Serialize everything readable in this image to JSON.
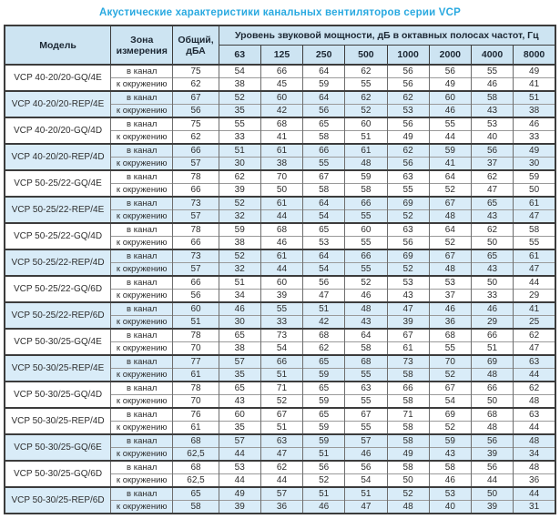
{
  "title": "Акустические характеристики канальных вентиляторов  серии VCP",
  "table": {
    "headers": {
      "model": "Модель",
      "zone": "Зона измерения",
      "total": "Общий, дБА",
      "level_group": "Уровень звуковой мощности, дБ в октавных полосах частот, Гц",
      "frequencies": [
        "63",
        "125",
        "250",
        "500",
        "1000",
        "2000",
        "4000",
        "8000"
      ]
    },
    "zone_labels": {
      "in_channel": "в канал",
      "to_environment": "к окружению"
    },
    "accent_colors": {
      "title_blue": "#29a9e0",
      "header_bg": "#cde4f2",
      "stripe_bg": "#d9ecf8"
    },
    "rows": [
      {
        "model": "VCP 40-20/20-GQ/4E",
        "striped": false,
        "in_channel": {
          "total": "75",
          "bands": [
            "54",
            "66",
            "64",
            "62",
            "56",
            "56",
            "55",
            "49"
          ]
        },
        "to_environment": {
          "total": "62",
          "bands": [
            "38",
            "45",
            "59",
            "55",
            "56",
            "49",
            "46",
            "41"
          ]
        }
      },
      {
        "model": "VCP 40-20/20-REP/4E",
        "striped": true,
        "in_channel": {
          "total": "67",
          "bands": [
            "52",
            "60",
            "64",
            "62",
            "62",
            "60",
            "58",
            "51"
          ]
        },
        "to_environment": {
          "total": "56",
          "bands": [
            "35",
            "42",
            "56",
            "52",
            "53",
            "46",
            "43",
            "38"
          ]
        }
      },
      {
        "model": "VCP 40-20/20-GQ/4D",
        "striped": false,
        "in_channel": {
          "total": "75",
          "bands": [
            "55",
            "68",
            "65",
            "60",
            "56",
            "55",
            "53",
            "46"
          ]
        },
        "to_environment": {
          "total": "62",
          "bands": [
            "33",
            "41",
            "58",
            "51",
            "49",
            "44",
            "40",
            "33"
          ]
        }
      },
      {
        "model": "VCP 40-20/20-REP/4D",
        "striped": true,
        "in_channel": {
          "total": "66",
          "bands": [
            "51",
            "61",
            "66",
            "61",
            "62",
            "59",
            "56",
            "49"
          ]
        },
        "to_environment": {
          "total": "57",
          "bands": [
            "30",
            "38",
            "55",
            "48",
            "56",
            "41",
            "37",
            "30"
          ]
        }
      },
      {
        "model": "VCP 50-25/22-GQ/4E",
        "striped": false,
        "in_channel": {
          "total": "78",
          "bands": [
            "62",
            "70",
            "67",
            "59",
            "63",
            "64",
            "62",
            "59"
          ]
        },
        "to_environment": {
          "total": "66",
          "bands": [
            "39",
            "50",
            "58",
            "58",
            "55",
            "52",
            "47",
            "50"
          ]
        }
      },
      {
        "model": "VCP 50-25/22-REP/4E",
        "striped": true,
        "in_channel": {
          "total": "73",
          "bands": [
            "52",
            "61",
            "64",
            "66",
            "69",
            "67",
            "65",
            "61"
          ]
        },
        "to_environment": {
          "total": "57",
          "bands": [
            "32",
            "44",
            "54",
            "55",
            "52",
            "48",
            "43",
            "47"
          ]
        }
      },
      {
        "model": "VCP 50-25/22-GQ/4D",
        "striped": false,
        "in_channel": {
          "total": "78",
          "bands": [
            "59",
            "68",
            "65",
            "60",
            "63",
            "64",
            "62",
            "58"
          ]
        },
        "to_environment": {
          "total": "66",
          "bands": [
            "38",
            "46",
            "53",
            "55",
            "56",
            "52",
            "50",
            "55"
          ]
        }
      },
      {
        "model": "VCP 50-25/22-REP/4D",
        "striped": true,
        "in_channel": {
          "total": "73",
          "bands": [
            "52",
            "61",
            "64",
            "66",
            "69",
            "67",
            "65",
            "61"
          ]
        },
        "to_environment": {
          "total": "57",
          "bands": [
            "32",
            "44",
            "54",
            "55",
            "52",
            "48",
            "43",
            "47"
          ]
        }
      },
      {
        "model": "VCP 50-25/22-GQ/6D",
        "striped": false,
        "in_channel": {
          "total": "66",
          "bands": [
            "51",
            "60",
            "56",
            "52",
            "53",
            "53",
            "50",
            "44"
          ]
        },
        "to_environment": {
          "total": "56",
          "bands": [
            "34",
            "39",
            "47",
            "46",
            "43",
            "37",
            "33",
            "29"
          ]
        }
      },
      {
        "model": "VCP 50-25/22-REP/6D",
        "striped": true,
        "in_channel": {
          "total": "60",
          "bands": [
            "46",
            "55",
            "51",
            "48",
            "47",
            "46",
            "46",
            "41"
          ]
        },
        "to_environment": {
          "total": "51",
          "bands": [
            "30",
            "33",
            "42",
            "43",
            "39",
            "36",
            "29",
            "25"
          ]
        }
      },
      {
        "model": "VCP 50-30/25-GQ/4E",
        "striped": false,
        "in_channel": {
          "total": "78",
          "bands": [
            "65",
            "73",
            "68",
            "64",
            "67",
            "68",
            "66",
            "62"
          ]
        },
        "to_environment": {
          "total": "70",
          "bands": [
            "38",
            "54",
            "62",
            "58",
            "61",
            "55",
            "51",
            "47"
          ]
        }
      },
      {
        "model": "VCP 50-30/25-REP/4E",
        "striped": true,
        "in_channel": {
          "total": "77",
          "bands": [
            "57",
            "66",
            "65",
            "68",
            "73",
            "70",
            "69",
            "63"
          ]
        },
        "to_environment": {
          "total": "61",
          "bands": [
            "35",
            "51",
            "59",
            "55",
            "58",
            "52",
            "48",
            "44"
          ]
        }
      },
      {
        "model": "VCP 50-30/25-GQ/4D",
        "striped": false,
        "in_channel": {
          "total": "78",
          "bands": [
            "65",
            "71",
            "65",
            "63",
            "66",
            "67",
            "66",
            "62"
          ]
        },
        "to_environment": {
          "total": "70",
          "bands": [
            "43",
            "52",
            "59",
            "55",
            "58",
            "54",
            "50",
            "48"
          ]
        }
      },
      {
        "model": "VCP 50-30/25-REP/4D",
        "striped": false,
        "in_channel": {
          "total": "76",
          "bands": [
            "60",
            "67",
            "65",
            "67",
            "71",
            "69",
            "68",
            "63"
          ]
        },
        "to_environment": {
          "total": "61",
          "bands": [
            "35",
            "51",
            "59",
            "55",
            "58",
            "52",
            "48",
            "44"
          ]
        }
      },
      {
        "model": "VCP 50-30/25-GQ/6E",
        "striped": true,
        "in_channel": {
          "total": "68",
          "bands": [
            "57",
            "63",
            "59",
            "57",
            "58",
            "59",
            "56",
            "48"
          ]
        },
        "to_environment": {
          "total": "62,5",
          "bands": [
            "44",
            "47",
            "51",
            "46",
            "49",
            "43",
            "39",
            "34"
          ]
        }
      },
      {
        "model": "VCP 50-30/25-GQ/6D",
        "striped": false,
        "in_channel": {
          "total": "68",
          "bands": [
            "53",
            "62",
            "56",
            "56",
            "58",
            "58",
            "56",
            "48"
          ]
        },
        "to_environment": {
          "total": "62,5",
          "bands": [
            "44",
            "44",
            "52",
            "54",
            "50",
            "46",
            "44",
            "36"
          ]
        }
      },
      {
        "model": "VCP 50-30/25-REP/6D",
        "striped": true,
        "in_channel": {
          "total": "65",
          "bands": [
            "49",
            "57",
            "51",
            "51",
            "52",
            "53",
            "50",
            "44"
          ]
        },
        "to_environment": {
          "total": "58",
          "bands": [
            "39",
            "36",
            "46",
            "47",
            "48",
            "40",
            "39",
            "31"
          ]
        }
      }
    ]
  }
}
